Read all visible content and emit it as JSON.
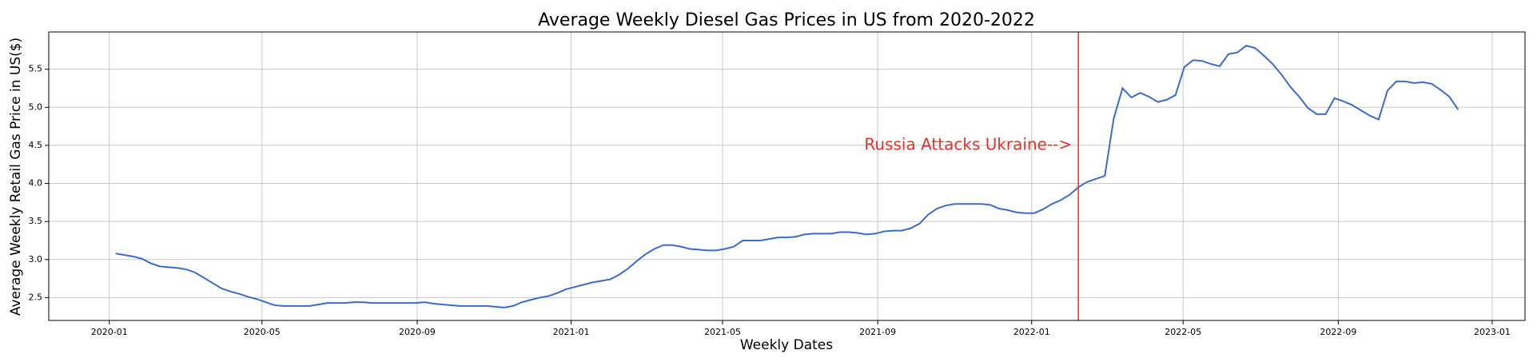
{
  "chart_data": {
    "type": "line",
    "title": "Average Weekly Diesel Gas Prices in US from 2020-2022",
    "x_label": "Weekly Dates",
    "y_label": "Average Weekly Retail Gas Price in US($)",
    "color": "#3b6cc7",
    "grid": true,
    "xlim": [
      "2019-11-14",
      "2023-01-27"
    ],
    "xticks": [
      "2020-01",
      "2020-05",
      "2020-09",
      "2021-01",
      "2021-05",
      "2021-09",
      "2022-01",
      "2022-05",
      "2022-09",
      "2023-01"
    ],
    "ylim": [
      2.2,
      5.99
    ],
    "yticks": [
      2.5,
      {
        "value": 3,
        "label": "3.0"
      },
      3.5,
      {
        "value": 4,
        "label": "4.0"
      },
      4.5,
      {
        "value": 5,
        "label": "5.0"
      },
      5.5
    ],
    "event": {
      "x": "2022-02-07",
      "color": "#e8302a",
      "annotation": "Russia Attacks Ukraine-->",
      "annotation_y": 4.5
    },
    "x": [
      "2020-01-06",
      "2020-01-13",
      "2020-01-20",
      "2020-01-27",
      "2020-02-03",
      "2020-02-10",
      "2020-02-17",
      "2020-02-24",
      "2020-03-02",
      "2020-03-09",
      "2020-03-16",
      "2020-03-23",
      "2020-03-30",
      "2020-04-06",
      "2020-04-13",
      "2020-04-20",
      "2020-04-27",
      "2020-05-04",
      "2020-05-11",
      "2020-05-18",
      "2020-05-25",
      "2020-06-01",
      "2020-06-08",
      "2020-06-15",
      "2020-06-22",
      "2020-06-29",
      "2020-07-06",
      "2020-07-13",
      "2020-07-20",
      "2020-07-27",
      "2020-08-03",
      "2020-08-10",
      "2020-08-17",
      "2020-08-24",
      "2020-08-31",
      "2020-09-07",
      "2020-09-14",
      "2020-09-21",
      "2020-09-28",
      "2020-10-05",
      "2020-10-12",
      "2020-10-19",
      "2020-10-26",
      "2020-11-02",
      "2020-11-09",
      "2020-11-16",
      "2020-11-23",
      "2020-11-30",
      "2020-12-07",
      "2020-12-14",
      "2020-12-21",
      "2020-12-28",
      "2021-01-04",
      "2021-01-11",
      "2021-01-18",
      "2021-01-25",
      "2021-02-01",
      "2021-02-08",
      "2021-02-15",
      "2021-02-22",
      "2021-03-01",
      "2021-03-08",
      "2021-03-15",
      "2021-03-22",
      "2021-03-29",
      "2021-04-05",
      "2021-04-12",
      "2021-04-19",
      "2021-04-26",
      "2021-05-03",
      "2021-05-10",
      "2021-05-17",
      "2021-05-24",
      "2021-05-31",
      "2021-06-07",
      "2021-06-14",
      "2021-06-21",
      "2021-06-28",
      "2021-07-05",
      "2021-07-12",
      "2021-07-19",
      "2021-07-26",
      "2021-08-02",
      "2021-08-09",
      "2021-08-16",
      "2021-08-23",
      "2021-08-30",
      "2021-09-06",
      "2021-09-13",
      "2021-09-20",
      "2021-09-27",
      "2021-10-04",
      "2021-10-11",
      "2021-10-18",
      "2021-10-25",
      "2021-11-01",
      "2021-11-08",
      "2021-11-15",
      "2021-11-22",
      "2021-11-29",
      "2021-12-06",
      "2021-12-13",
      "2021-12-20",
      "2021-12-27",
      "2022-01-03",
      "2022-01-10",
      "2022-01-17",
      "2022-01-24",
      "2022-01-31",
      "2022-02-07",
      "2022-02-14",
      "2022-02-21",
      "2022-02-28",
      "2022-03-07",
      "2022-03-14",
      "2022-03-21",
      "2022-03-28",
      "2022-04-04",
      "2022-04-11",
      "2022-04-18",
      "2022-04-25",
      "2022-05-02",
      "2022-05-09",
      "2022-05-16",
      "2022-05-23",
      "2022-05-30",
      "2022-06-06",
      "2022-06-13",
      "2022-06-20",
      "2022-06-27",
      "2022-07-04",
      "2022-07-11",
      "2022-07-18",
      "2022-07-25",
      "2022-08-01",
      "2022-08-08",
      "2022-08-15",
      "2022-08-22",
      "2022-08-29",
      "2022-09-05",
      "2022-09-12",
      "2022-09-19",
      "2022-09-26",
      "2022-10-03",
      "2022-10-10",
      "2022-10-17",
      "2022-10-24",
      "2022-10-31",
      "2022-11-07",
      "2022-11-14",
      "2022-11-21",
      "2022-11-28",
      "2022-12-05"
    ],
    "values": [
      3.08,
      3.06,
      3.04,
      3.01,
      2.95,
      2.91,
      2.9,
      2.89,
      2.87,
      2.83,
      2.76,
      2.69,
      2.62,
      2.58,
      2.55,
      2.51,
      2.48,
      2.44,
      2.4,
      2.39,
      2.39,
      2.39,
      2.39,
      2.41,
      2.43,
      2.43,
      2.43,
      2.44,
      2.44,
      2.43,
      2.43,
      2.43,
      2.43,
      2.43,
      2.43,
      2.44,
      2.42,
      2.41,
      2.4,
      2.39,
      2.39,
      2.39,
      2.39,
      2.38,
      2.37,
      2.39,
      2.44,
      2.47,
      2.5,
      2.52,
      2.56,
      2.61,
      2.64,
      2.67,
      2.7,
      2.72,
      2.74,
      2.8,
      2.88,
      2.98,
      3.07,
      3.14,
      3.19,
      3.19,
      3.17,
      3.14,
      3.13,
      3.12,
      3.12,
      3.14,
      3.17,
      3.25,
      3.25,
      3.25,
      3.27,
      3.29,
      3.29,
      3.3,
      3.33,
      3.34,
      3.34,
      3.34,
      3.36,
      3.36,
      3.35,
      3.33,
      3.34,
      3.37,
      3.38,
      3.38,
      3.41,
      3.47,
      3.59,
      3.67,
      3.71,
      3.73,
      3.73,
      3.73,
      3.73,
      3.72,
      3.67,
      3.65,
      3.62,
      3.61,
      3.61,
      3.66,
      3.73,
      3.78,
      3.85,
      3.95,
      4.02,
      4.06,
      4.1,
      4.85,
      5.25,
      5.13,
      5.19,
      5.14,
      5.07,
      5.1,
      5.16,
      5.53,
      5.62,
      5.61,
      5.57,
      5.54,
      5.7,
      5.72,
      5.81,
      5.78,
      5.68,
      5.57,
      5.43,
      5.27,
      5.14,
      4.99,
      4.91,
      4.91,
      5.12,
      5.08,
      5.03,
      4.96,
      4.89,
      4.84,
      5.22,
      5.34,
      5.34,
      5.32,
      5.33,
      5.31,
      5.23,
      5.14,
      4.97
    ]
  }
}
